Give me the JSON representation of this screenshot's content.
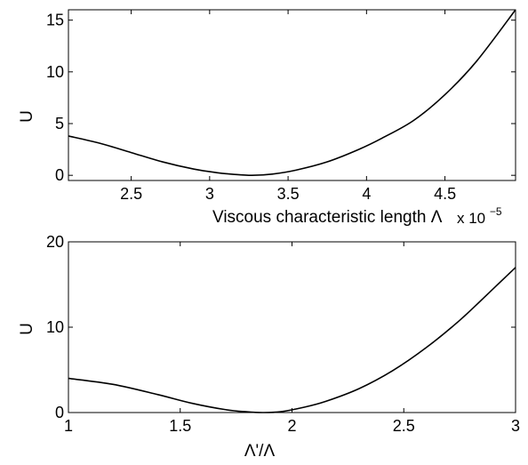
{
  "chart_data": [
    {
      "type": "line",
      "xlabel": "Viscous characteristic length Λ",
      "ylabel": "U",
      "xlim": [
        2.1,
        4.95
      ],
      "ylim": [
        -0.5,
        16
      ],
      "x_exponent_label": "x 10",
      "x_exponent_power": "−5",
      "xticks": [
        {
          "value": 2.5,
          "label": "2.5"
        },
        {
          "value": 3,
          "label": "3"
        },
        {
          "value": 3.5,
          "label": "3.5"
        },
        {
          "value": 4,
          "label": "4"
        },
        {
          "value": 4.5,
          "label": "4.5"
        }
      ],
      "yticks": [
        {
          "value": 0,
          "label": "0"
        },
        {
          "value": 5,
          "label": "5"
        },
        {
          "value": 10,
          "label": "10"
        },
        {
          "value": 15,
          "label": "15"
        }
      ],
      "grid": false,
      "series": [
        {
          "x": [
            2.1,
            2.3,
            2.5,
            2.7,
            2.9,
            3.05,
            3.15,
            3.27,
            3.4,
            3.55,
            3.75,
            3.95,
            4.1,
            4.3,
            4.5,
            4.7,
            4.95
          ],
          "y": [
            3.8,
            3.1,
            2.2,
            1.3,
            0.6,
            0.25,
            0.1,
            0.0,
            0.12,
            0.5,
            1.3,
            2.5,
            3.6,
            5.3,
            7.8,
            11.0,
            16.0
          ]
        }
      ]
    },
    {
      "type": "line",
      "xlabel": "Λ'/Λ",
      "ylabel": "U",
      "xlim": [
        1,
        3
      ],
      "ylim": [
        0,
        20
      ],
      "xticks": [
        {
          "value": 1,
          "label": "1"
        },
        {
          "value": 1.5,
          "label": "1.5"
        },
        {
          "value": 2,
          "label": "2"
        },
        {
          "value": 2.5,
          "label": "2.5"
        },
        {
          "value": 3,
          "label": "3"
        }
      ],
      "yticks": [
        {
          "value": 0,
          "label": "0"
        },
        {
          "value": 10,
          "label": "10"
        },
        {
          "value": 20,
          "label": "20"
        }
      ],
      "grid": false,
      "series": [
        {
          "x": [
            1.0,
            1.2,
            1.4,
            1.55,
            1.7,
            1.8,
            1.87,
            1.95,
            2.05,
            2.15,
            2.3,
            2.45,
            2.6,
            2.75,
            2.9,
            3.0
          ],
          "y": [
            4.0,
            3.3,
            2.1,
            1.1,
            0.35,
            0.08,
            0.0,
            0.1,
            0.6,
            1.3,
            2.8,
            4.9,
            7.6,
            10.8,
            14.5,
            17.0
          ]
        }
      ]
    }
  ]
}
